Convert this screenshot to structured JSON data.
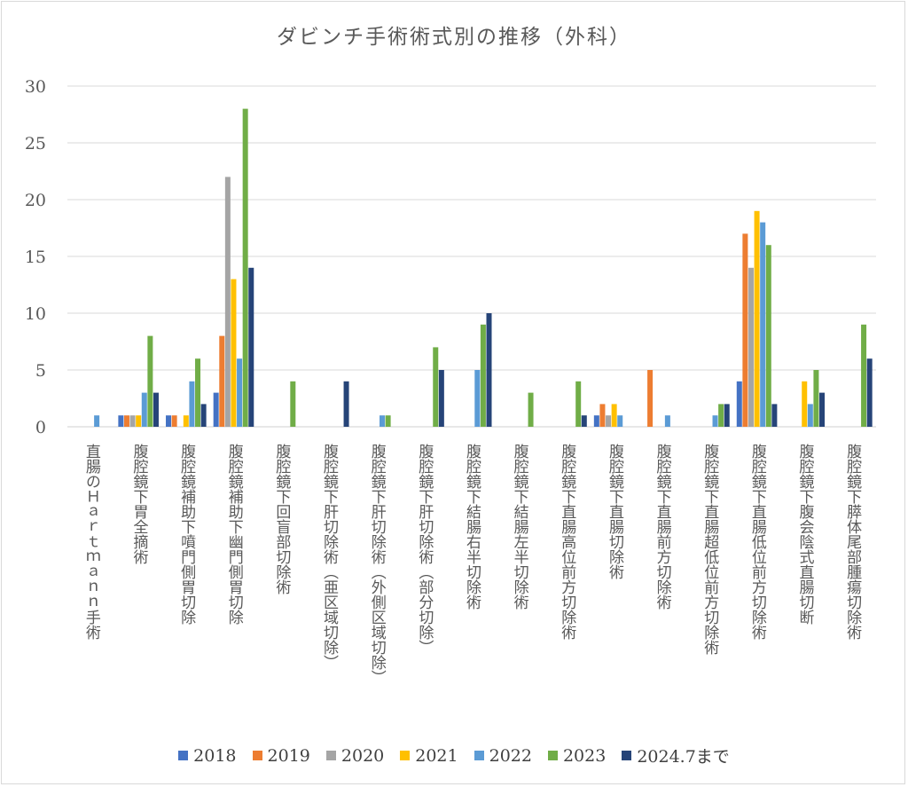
{
  "chart_data": {
    "type": "bar",
    "title": "ダビンチ手術術式別の推移（外科）",
    "categories": [
      "直腸のＨａｒｔｍａｎｎ手術",
      "腹腔鏡下胃全摘術",
      "腹腔鏡補助下噴門側胃切除",
      "腹腔鏡補助下幽門側胃切除",
      "腹腔鏡下回盲部切除術",
      "腹腔鏡下肝切除術（亜区域切除）",
      "腹腔鏡下肝切除術（外側区域切除）",
      "腹腔鏡下肝切除術（部分切除）",
      "腹腔鏡下結腸右半切除術",
      "腹腔鏡下結腸左半切除術",
      "腹腔鏡下直腸高位前方切除術",
      "腹腔鏡下直腸切除術",
      "腹腔鏡下直腸前方切除術",
      "腹腔鏡下直腸超低位前方切除術",
      "腹腔鏡下直腸低位前方切除術",
      "腹腔鏡下腹会陰式直腸切断",
      "腹腔鏡下膵体尾部腫瘍切除術"
    ],
    "series": [
      {
        "name": "2018",
        "color": "#4472c4",
        "values": [
          0,
          1,
          1,
          3,
          0,
          0,
          0,
          0,
          0,
          0,
          0,
          1,
          0,
          0,
          4,
          0,
          0
        ]
      },
      {
        "name": "2019",
        "color": "#ed7d31",
        "values": [
          0,
          1,
          1,
          8,
          0,
          0,
          0,
          0,
          0,
          0,
          0,
          2,
          5,
          0,
          17,
          0,
          0
        ]
      },
      {
        "name": "2020",
        "color": "#a5a5a5",
        "values": [
          0,
          1,
          0,
          22,
          0,
          0,
          0,
          0,
          0,
          0,
          0,
          1,
          0,
          0,
          14,
          0,
          0
        ]
      },
      {
        "name": "2021",
        "color": "#ffc000",
        "values": [
          0,
          1,
          1,
          13,
          0,
          0,
          0,
          0,
          0,
          0,
          0,
          2,
          0,
          0,
          19,
          4,
          0
        ]
      },
      {
        "name": "2022",
        "color": "#5b9bd5",
        "values": [
          1,
          3,
          4,
          6,
          0,
          0,
          1,
          0,
          5,
          0,
          0,
          1,
          1,
          1,
          18,
          2,
          0
        ]
      },
      {
        "name": "2023",
        "color": "#70ad47",
        "values": [
          0,
          8,
          6,
          28,
          4,
          0,
          1,
          7,
          9,
          3,
          4,
          0,
          0,
          2,
          16,
          5,
          9
        ]
      },
      {
        "name": "2024.7まで",
        "color": "#264478",
        "values": [
          0,
          3,
          2,
          14,
          0,
          4,
          0,
          5,
          10,
          0,
          1,
          0,
          0,
          2,
          2,
          3,
          6
        ]
      }
    ],
    "ylim": [
      0,
      30
    ],
    "yticks": [
      0,
      5,
      10,
      15,
      20,
      25,
      30
    ],
    "xlabel": "",
    "ylabel": "",
    "grid": true,
    "legend": "bottom"
  }
}
